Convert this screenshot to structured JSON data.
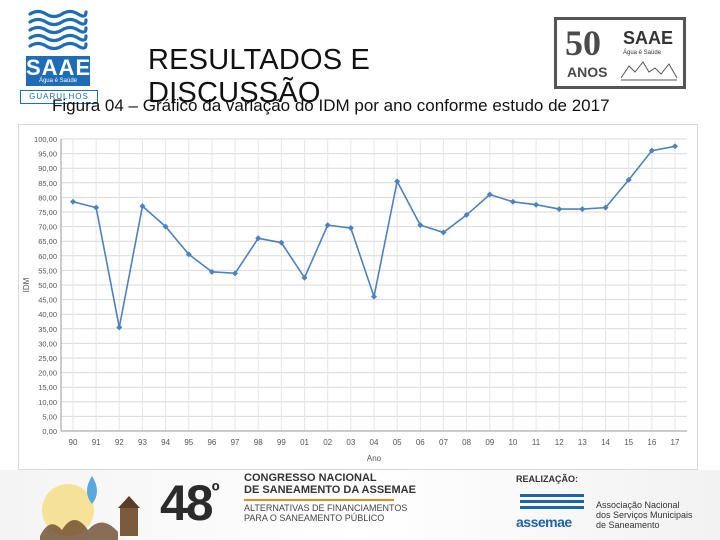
{
  "header": {
    "title": "RESULTADOS E DISCUSSÃO",
    "caption": "Figura 04 – Gráfico da variação do IDM por ano conforme estudo de 2017"
  },
  "logo_left": {
    "brand": "SAAE",
    "tagline": "Água é Saúde",
    "city": "GUARULHOS",
    "color": "#1f6db5"
  },
  "logo_right": {
    "number": "50",
    "anos": "ANOS",
    "brand": "SAAE",
    "tagline": "Água é Saúde"
  },
  "chart_data": {
    "type": "line",
    "title": "",
    "xlabel": "Ano",
    "ylabel": "IDM",
    "ylim": [
      0,
      100
    ],
    "ytick_step": 5,
    "ytick_labels": [
      "0,00",
      "5,00",
      "10,00",
      "15,00",
      "20,00",
      "25,00",
      "30,00",
      "35,00",
      "40,00",
      "45,00",
      "50,00",
      "55,00",
      "60,00",
      "65,00",
      "70,00",
      "75,00",
      "80,00",
      "85,00",
      "90,00",
      "95,00",
      "100,00"
    ],
    "categories": [
      "90",
      "91",
      "92",
      "93",
      "94",
      "95",
      "96",
      "97",
      "98",
      "99",
      "01",
      "02",
      "03",
      "04",
      "05",
      "06",
      "07",
      "08",
      "09",
      "10",
      "11",
      "12",
      "13",
      "14",
      "15",
      "16",
      "17"
    ],
    "series": [
      {
        "values": [
          78.5,
          76.5,
          35.5,
          77.0,
          70.0,
          60.5,
          54.5,
          54.0,
          66.0,
          64.5,
          52.5,
          70.5,
          69.5,
          46.0,
          85.5,
          70.5,
          68.0,
          74.0,
          81.0,
          78.5,
          77.5,
          76.0,
          76.0,
          76.5,
          86.0,
          96.0,
          97.5
        ],
        "color": "#4f81bd"
      }
    ],
    "grid": true,
    "legend": "none"
  },
  "banner": {
    "edition": "48",
    "edition_suffix": "º",
    "congress_line1": "CONGRESSO NACIONAL",
    "congress_line2": "DE SANEAMENTO DA ASSEMAE",
    "theme_line1": "ALTERNATIVAS DE FINANCIAMENTOS",
    "theme_line2": "PARA O SANEAMENTO PÚBLICO",
    "realizacao": "REALIZAÇÃO:",
    "org_short": "assemae",
    "org_line1": "Associação Nacional",
    "org_line2": "dos Serviços Municipais",
    "org_line3": "de Saneamento",
    "accent": "#e38b22",
    "org_color": "#1e64a8"
  }
}
